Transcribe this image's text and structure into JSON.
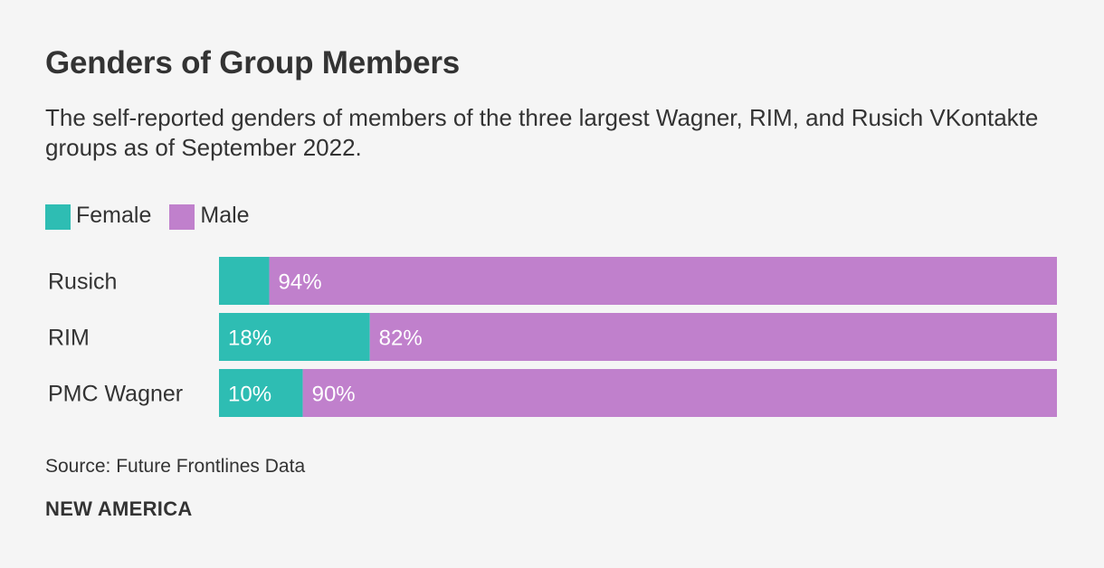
{
  "chart_data": {
    "type": "bar",
    "orientation": "horizontal",
    "stacked": true,
    "title": "Genders of Group Members",
    "subtitle": "The self-reported genders of members of the three largest Wagner, RIM, and Rusich VKontakte groups as of September 2022.",
    "categories": [
      "Rusich",
      "RIM",
      "PMC Wagner"
    ],
    "series": [
      {
        "name": "Female",
        "color": "#2ebdb3",
        "values": [
          6,
          18,
          10
        ],
        "labels": [
          "",
          "18%",
          "10%"
        ]
      },
      {
        "name": "Male",
        "color": "#c080cc",
        "values": [
          94,
          82,
          90
        ],
        "labels": [
          "94%",
          "82%",
          "90%"
        ]
      }
    ],
    "xlim": [
      0,
      100
    ],
    "legend": "top-left"
  },
  "source": "Source: Future Frontlines Data",
  "brand": "NEW AMERICA"
}
